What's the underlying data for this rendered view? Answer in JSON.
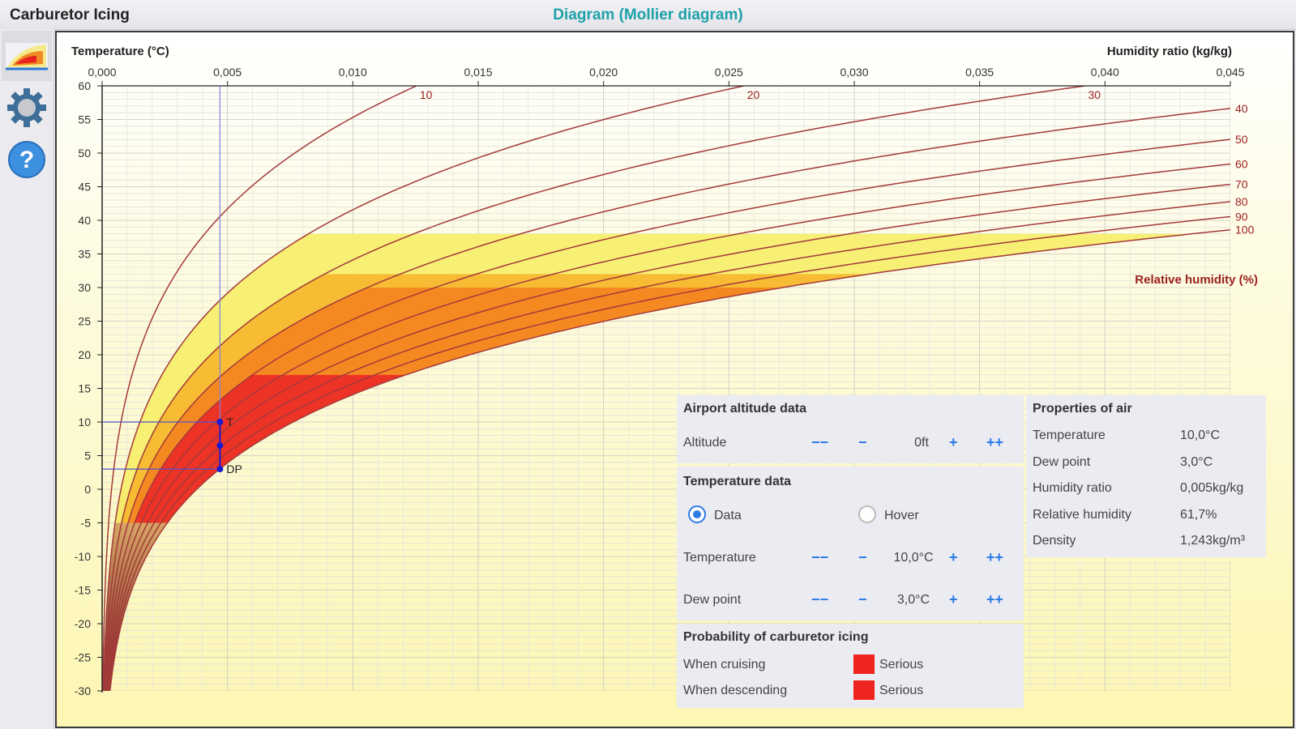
{
  "app": {
    "title": "Carburetor Icing",
    "view_title": "Diagram (Mollier diagram)"
  },
  "sidebar": {
    "items": [
      {
        "name": "diagram-icon",
        "active": true
      },
      {
        "name": "gear-icon",
        "active": false
      },
      {
        "name": "help-icon",
        "active": false
      }
    ]
  },
  "chart_data": {
    "type": "psychrometric",
    "y_axis_label": "Temperature (°C)",
    "x_axis_label": "Humidity ratio (kg/kg)",
    "rh_label": "Relative humidity (%)",
    "x_ticks": [
      "0,000",
      "0,005",
      "0,010",
      "0,015",
      "0,020",
      "0,025",
      "0,030",
      "0,035",
      "0,040",
      "0,045"
    ],
    "y_ticks": [
      "60",
      "55",
      "50",
      "45",
      "40",
      "35",
      "30",
      "25",
      "20",
      "15",
      "10",
      "5",
      "0",
      "-5",
      "-10",
      "-15",
      "-20",
      "-25",
      "-30"
    ],
    "xlim": [
      0,
      0.045
    ],
    "ylim": [
      -30,
      60
    ],
    "rh_curves": [
      10,
      20,
      30,
      40,
      50,
      60,
      70,
      80,
      90,
      100
    ],
    "rh_labels": [
      "10",
      "20",
      "30",
      "40",
      "50",
      "60",
      "70",
      "80",
      "90",
      "100"
    ],
    "risk_zones": [
      {
        "level": "light",
        "color": "#f7ef6a",
        "rh_range": [
          20,
          100
        ],
        "t_range": [
          -5,
          38
        ]
      },
      {
        "level": "moderate",
        "color": "#f6b72f",
        "rh_range": [
          30,
          100
        ],
        "t_range": [
          -5,
          32
        ]
      },
      {
        "level": "serious_cruise",
        "color": "#f4841f",
        "rh_range": [
          40,
          100
        ],
        "t_range": [
          -5,
          30
        ]
      },
      {
        "level": "serious",
        "color": "#ec2b26",
        "rh_range": [
          50,
          100
        ],
        "t_range": [
          -5,
          17
        ]
      }
    ],
    "point": {
      "temperature": 10.0,
      "dew_point": 3.0,
      "humidity_ratio": 0.0047,
      "label_t": "T",
      "label_dp": "DP"
    }
  },
  "airport": {
    "header": "Airport altitude data",
    "altitude_label": "Altitude",
    "altitude_value": "0ft",
    "minus2": "−−",
    "minus1": "−",
    "plus1": "+",
    "plus2": "++"
  },
  "temperature_data": {
    "header": "Temperature data",
    "radio_data": "Data",
    "radio_hover": "Hover",
    "temperature_label": "Temperature",
    "temperature_value": "10,0°C",
    "dewpoint_label": "Dew point",
    "dewpoint_value": "3,0°C",
    "minus2": "−−",
    "minus1": "−",
    "plus1": "+",
    "plus2": "++"
  },
  "probability": {
    "header": "Probability of carburetor icing",
    "cruising_label": "When cruising",
    "cruising_value": "Serious",
    "cruising_color": "#f0241f",
    "descending_label": "When descending",
    "descending_value": "Serious",
    "descending_color": "#f0241f"
  },
  "properties": {
    "header": "Properties of air",
    "rows": [
      {
        "label": "Temperature",
        "value": "10,0°C"
      },
      {
        "label": "Dew point",
        "value": "3,0°C"
      },
      {
        "label": "Humidity ratio",
        "value": "0,005kg/kg"
      },
      {
        "label": "Relative humidity",
        "value": "61,7%"
      },
      {
        "label": "Density",
        "value": "1,243kg/m³"
      }
    ]
  }
}
